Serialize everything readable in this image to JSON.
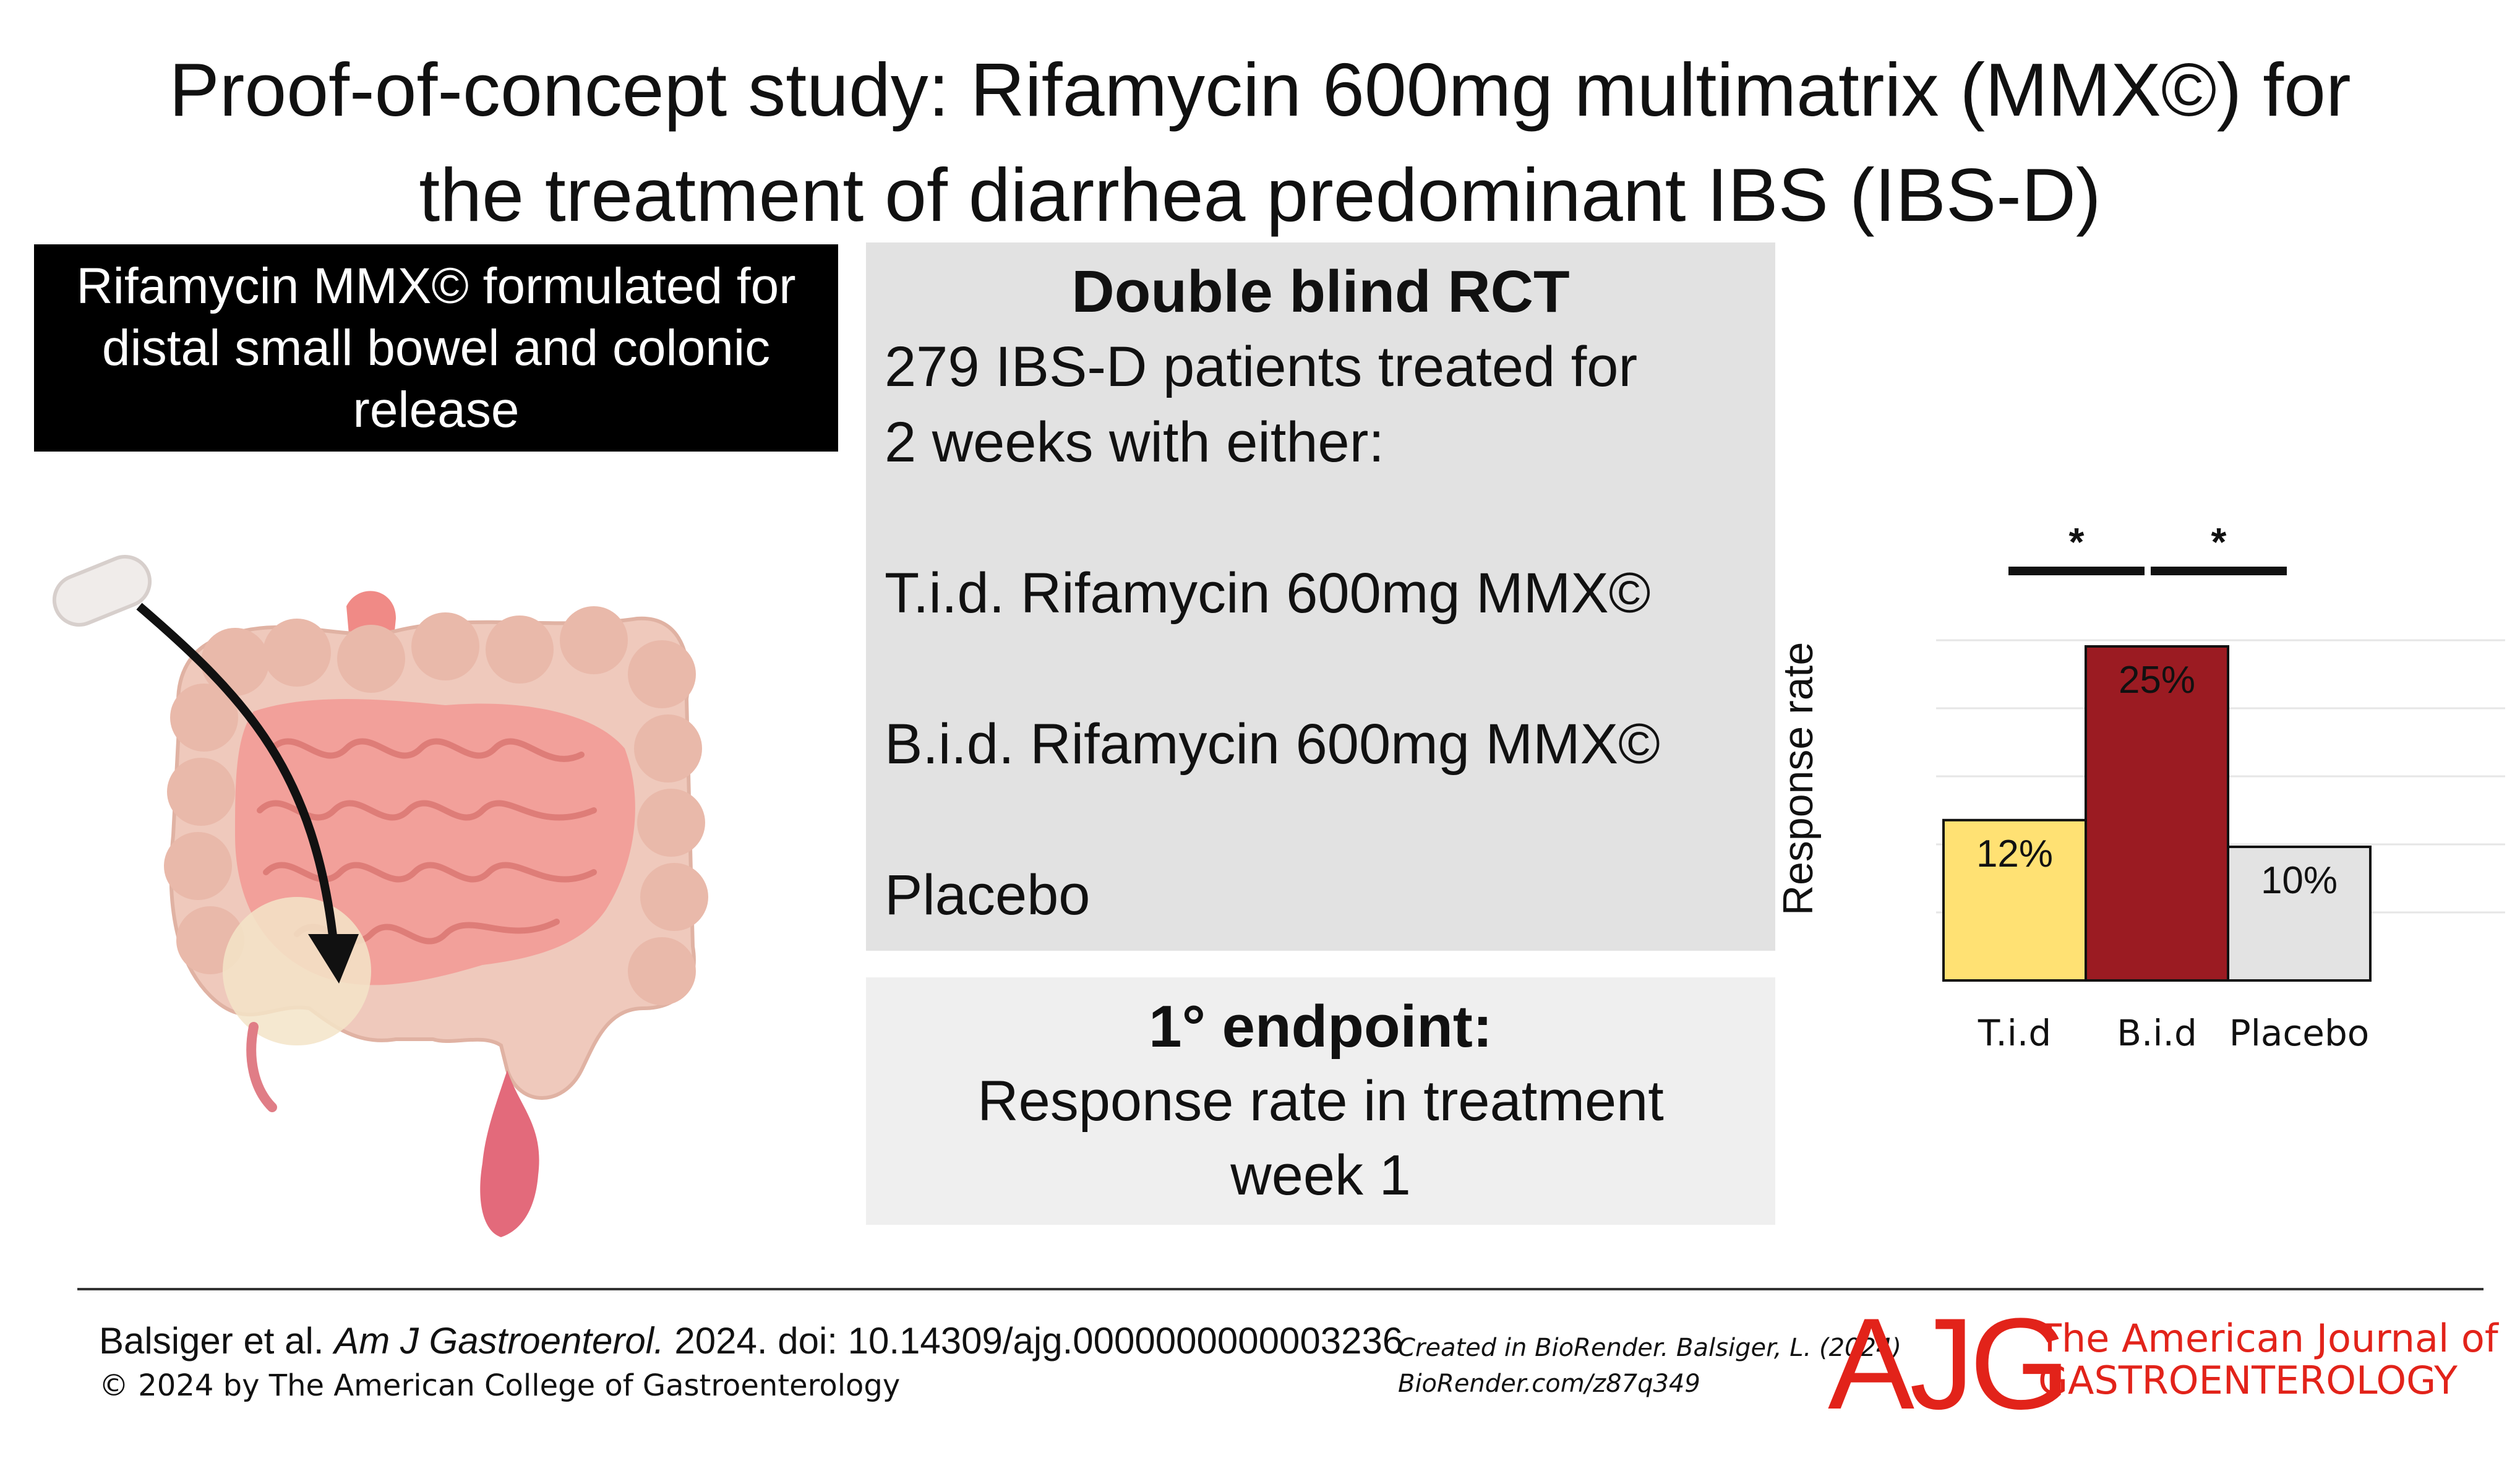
{
  "title": {
    "line1": "Proof-of-concept study: Rifamycin 600mg multimatrix (MMX©) for",
    "line2": "the treatment of diarrhea predominant IBS (IBS-D)"
  },
  "formulation": {
    "line1": "Rifamycin MMX© formulated for",
    "line2": "distal small bowel and colonic",
    "line3": "release"
  },
  "design": {
    "heading": "Double blind RCT",
    "line1": "279 IBS-D patients treated for",
    "line2": "2 weeks with either:",
    "arm1": "T.i.d. Rifamycin 600mg MMX©",
    "arm2": "B.i.d. Rifamycin 600mg MMX©",
    "arm3": "Placebo"
  },
  "endpoint": {
    "heading": "1° endpoint:",
    "line1": "Response rate in treatment",
    "line2": "week 1"
  },
  "chart_data": {
    "type": "bar",
    "categories": [
      "T.i.d",
      "B.i.d",
      "Placebo"
    ],
    "values": [
      12,
      25,
      10
    ],
    "data_labels": [
      "12%",
      "25%",
      "10%"
    ],
    "colors": [
      "#ffe173",
      "#9b1b22",
      "#e3e3e3"
    ],
    "label_colors": [
      "#111111",
      "#111111",
      "#111111"
    ],
    "ylabel": "Response rate",
    "ylim": [
      0,
      25
    ],
    "grid": true,
    "significance": [
      {
        "between": [
          "T.i.d",
          "B.i.d"
        ],
        "marker": "*"
      },
      {
        "between": [
          "B.i.d",
          "Placebo"
        ],
        "marker": "*"
      }
    ]
  },
  "footer": {
    "citation_authors": "Balsiger et al. ",
    "citation_journal": "Am J Gastroenterol.",
    "citation_rest": " 2024. doi: 10.14309/ajg.0000000000003236",
    "copyright": "© 2024 by The American College of Gastroenterology",
    "biorender_line1": "Created in BioRender. Balsiger, L. (2024)",
    "biorender_line2": "BioRender.com/z87q349",
    "logo_text": "AJG",
    "journal_line1": "The American Journal of",
    "journal_line2": "GASTROENTEROLOGY",
    "brand_color": "#e2231a"
  }
}
